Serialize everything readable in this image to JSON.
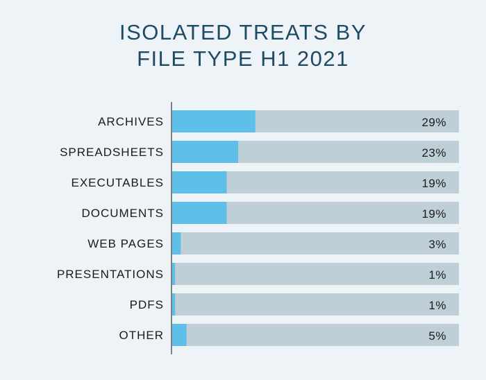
{
  "title_lines": [
    "ISOLATED TREATS BY",
    "FILE TYPE H1 2021"
  ],
  "colors": {
    "background": "#eef3f8",
    "bar_fill": "#5ec0e8",
    "bar_track": "#bfcfd8",
    "title": "#1f4a64",
    "axis": "#333333",
    "text": "#1a1a1a"
  },
  "chart_data": {
    "type": "bar",
    "orientation": "horizontal",
    "title": "ISOLATED TREATS BY FILE TYPE H1 2021",
    "categories": [
      "ARCHIVES",
      "SPREADSHEETS",
      "EXECUTABLES",
      "DOCUMENTS",
      "WEB PAGES",
      "PRESENTATIONS",
      "PDFS",
      "OTHER"
    ],
    "values": [
      29,
      23,
      19,
      19,
      3,
      1,
      1,
      5
    ],
    "value_labels": [
      "29%",
      "23%",
      "19%",
      "19%",
      "3%",
      "1%",
      "1%",
      "5%"
    ],
    "unit": "%",
    "xlim": [
      0,
      100
    ],
    "grid": false,
    "legend": "none"
  }
}
